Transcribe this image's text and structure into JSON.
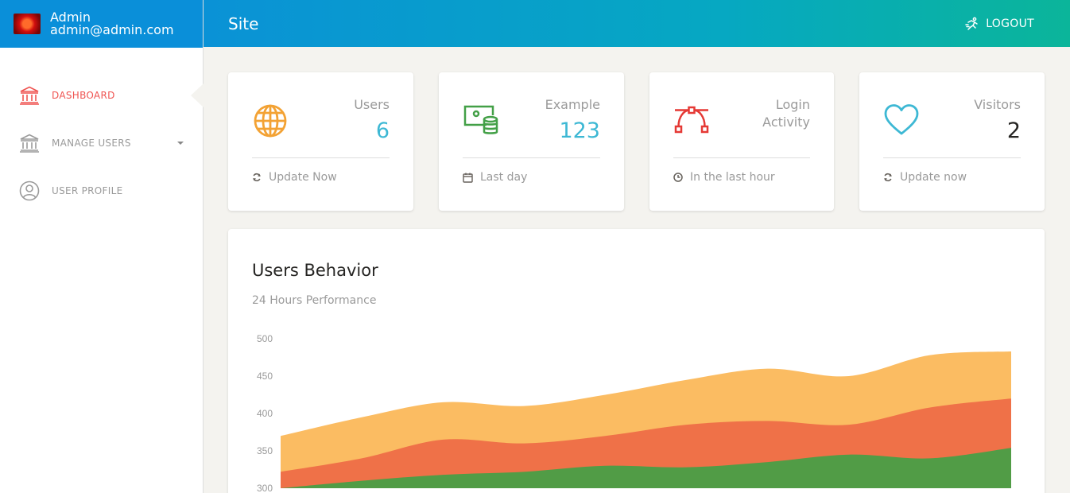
{
  "sidebar": {
    "user_name": "Admin",
    "user_email": "admin@admin.com",
    "items": [
      {
        "label": "DASHBOARD",
        "icon": "bank-icon",
        "active": true
      },
      {
        "label": "MANAGE USERS",
        "icon": "bank-icon",
        "active": false
      },
      {
        "label": "USER PROFILE",
        "icon": "user-circle-icon",
        "active": false
      }
    ]
  },
  "header": {
    "title": "Site",
    "logout_label": "LOGOUT"
  },
  "cards": [
    {
      "category": "Users",
      "value": "6",
      "footer": "Update Now",
      "icon": "globe-icon",
      "icon_color": "#f3a234",
      "value_color": "#3db8d4",
      "footer_icon": "refresh-icon"
    },
    {
      "category": "Example",
      "value": "123",
      "footer": "Last day",
      "icon": "money-coins-icon",
      "icon_color": "#43a047",
      "value_color": "#3db8d4",
      "footer_icon": "calendar-icon"
    },
    {
      "category": "Login Activity",
      "value": "",
      "footer": "In the last hour",
      "icon": "vector-icon",
      "icon_color": "#e53935",
      "value_color": "#252422",
      "footer_icon": "clock-icon"
    },
    {
      "category": "Visitors",
      "value": "2",
      "footer": "Update now",
      "icon": "heart-icon",
      "icon_color": "#3db8d4",
      "value_color": "#252422",
      "footer_icon": "refresh-icon"
    }
  ],
  "chart": {
    "title": "Users Behavior",
    "subtitle": "24 Hours Performance"
  },
  "chart_data": {
    "type": "area",
    "ylim": [
      300,
      500
    ],
    "yticks": [
      300,
      350,
      400,
      450,
      500
    ],
    "x": [
      0,
      1,
      2,
      3,
      4,
      5,
      6,
      7,
      8,
      9
    ],
    "series": [
      {
        "color": "#faa62d",
        "values": [
          370,
          395,
          415,
          410,
          425,
          445,
          460,
          450,
          478,
          483
        ]
      },
      {
        "color": "#ee6a45",
        "values": [
          322,
          340,
          365,
          360,
          370,
          385,
          390,
          385,
          408,
          420
        ]
      },
      {
        "color": "#43a047",
        "values": [
          300,
          310,
          318,
          322,
          330,
          328,
          335,
          345,
          340,
          354
        ]
      }
    ]
  }
}
